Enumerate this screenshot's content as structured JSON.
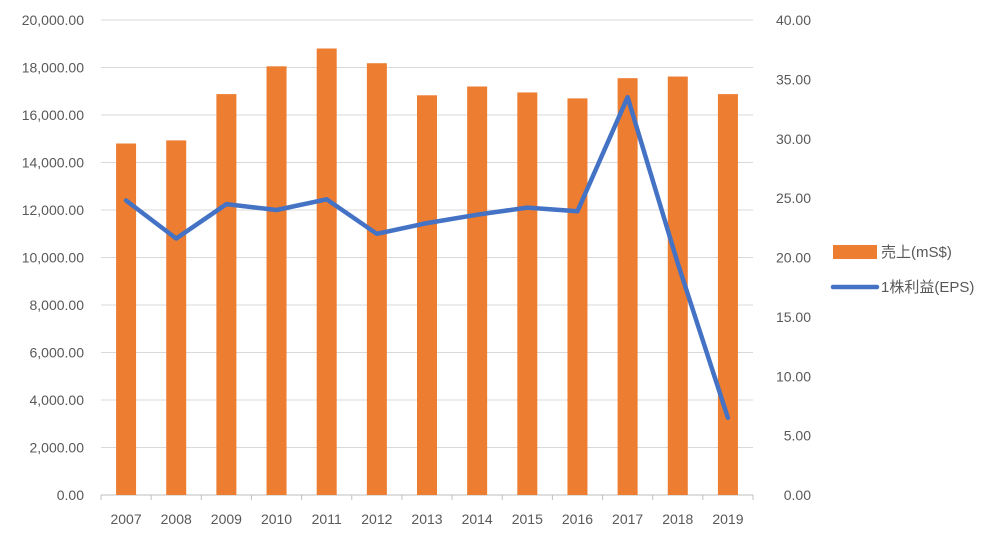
{
  "chart_data": {
    "type": "bar",
    "categories": [
      "2007",
      "2008",
      "2009",
      "2010",
      "2011",
      "2012",
      "2013",
      "2014",
      "2015",
      "2016",
      "2017",
      "2018",
      "2019"
    ],
    "series": [
      {
        "name": "売上(mS$)",
        "kind": "bar",
        "axis": "left",
        "color": "#ED7D31",
        "values": [
          14800,
          14930,
          16880,
          18050,
          18800,
          18180,
          16830,
          17200,
          16950,
          16700,
          17550,
          17620,
          16880
        ]
      },
      {
        "name": "1株利益(EPS)",
        "kind": "line",
        "axis": "right",
        "color": "#4472C4",
        "values": [
          24.8,
          21.6,
          24.5,
          24.0,
          24.9,
          22.0,
          22.9,
          23.6,
          24.2,
          23.9,
          33.5,
          19.5,
          6.5
        ]
      }
    ],
    "y_left": {
      "ylim": [
        0,
        20000
      ],
      "ticks": [
        "0.00",
        "2,000.00",
        "4,000.00",
        "6,000.00",
        "8,000.00",
        "10,000.00",
        "12,000.00",
        "14,000.00",
        "16,000.00",
        "18,000.00",
        "20,000.00"
      ]
    },
    "y_right": {
      "ylim": [
        0,
        40
      ],
      "ticks": [
        "0.00",
        "5.00",
        "10.00",
        "15.00",
        "20.00",
        "25.00",
        "30.00",
        "35.00",
        "40.00"
      ]
    },
    "grid": true,
    "legend_position": "right"
  }
}
